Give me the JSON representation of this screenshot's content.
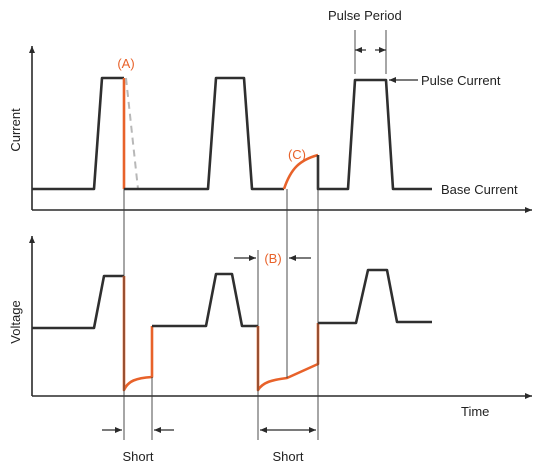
{
  "labels": {
    "pulse_period": "Pulse Period",
    "pulse_current": "Pulse Current",
    "base_current": "Base Current",
    "current_axis": "Current",
    "voltage_axis": "Voltage",
    "time_axis": "Time",
    "short_1": "Short",
    "short_2": "Short",
    "marker_a": "(A)",
    "marker_b": "(B)",
    "marker_c": "(C)"
  },
  "colors": {
    "trace": "#2f2f2f",
    "highlight": "#e8622a",
    "dashed": "#b8b8b8"
  }
}
